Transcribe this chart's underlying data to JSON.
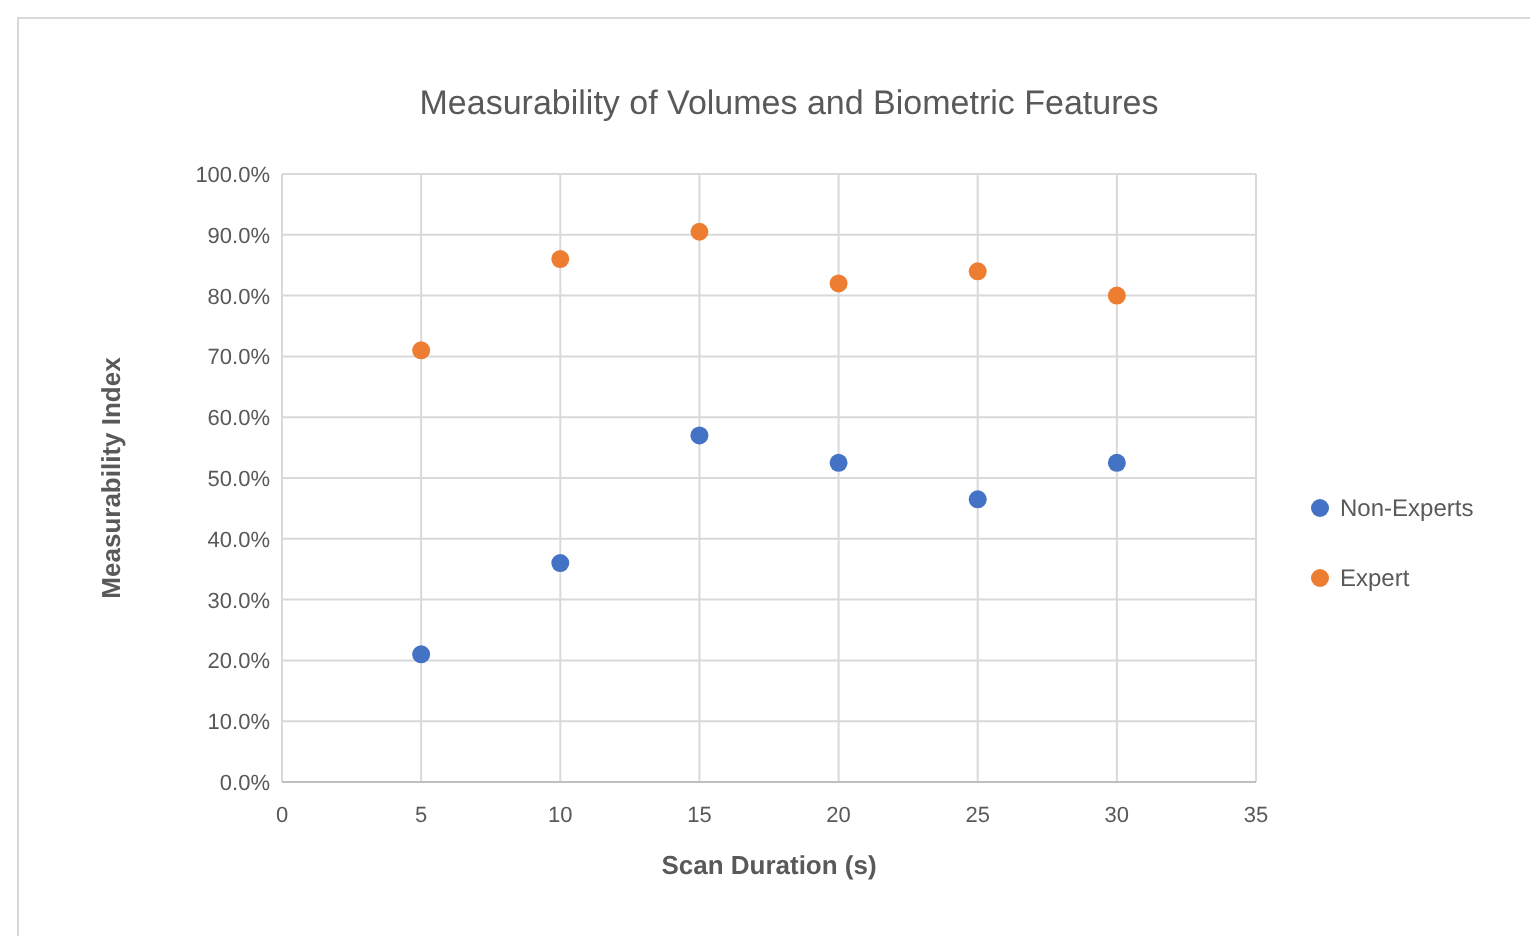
{
  "chart_data": {
    "type": "scatter",
    "title": "Measurability of Volumes and Biometric Features",
    "xlabel": "Scan Duration (s)",
    "ylabel": "Measurability Index",
    "x": [
      5,
      10,
      15,
      20,
      25,
      30
    ],
    "series": [
      {
        "name": "Non-Experts",
        "color": "#4472c4",
        "values": [
          21,
          36,
          57,
          52.5,
          46.5,
          52.5
        ]
      },
      {
        "name": "Expert",
        "color": "#ed7d31",
        "values": [
          71,
          86,
          90.5,
          82,
          84,
          80
        ]
      }
    ],
    "xlim": [
      0,
      35
    ],
    "xticks": [
      0,
      5,
      10,
      15,
      20,
      25,
      30,
      35
    ],
    "ylim": [
      0,
      100
    ],
    "yticks": [
      {
        "value": 0,
        "label": "0.0%"
      },
      {
        "value": 10,
        "label": "10.0%"
      },
      {
        "value": 20,
        "label": "20.0%"
      },
      {
        "value": 30,
        "label": "30.0%"
      },
      {
        "value": 40,
        "label": "40.0%"
      },
      {
        "value": 50,
        "label": "50.0%"
      },
      {
        "value": 60,
        "label": "60.0%"
      },
      {
        "value": 70,
        "label": "70.0%"
      },
      {
        "value": 80,
        "label": "80.0%"
      },
      {
        "value": 90,
        "label": "90.0%"
      },
      {
        "value": 100,
        "label": "100.0%"
      }
    ],
    "grid": true,
    "legend": "right",
    "marker": "circle"
  }
}
